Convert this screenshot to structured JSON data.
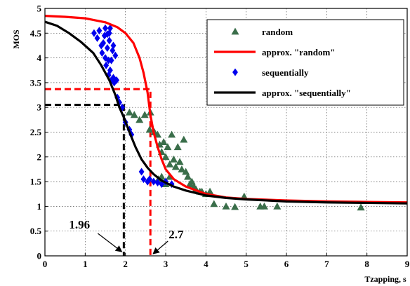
{
  "chart_data": {
    "type": "scatter",
    "title": "",
    "xlabel": "Tzapping, s",
    "ylabel": "MOS",
    "xlim": [
      0,
      9
    ],
    "ylim": [
      0,
      5
    ],
    "x_ticks": [
      0,
      1,
      2,
      3,
      4,
      5,
      6,
      7,
      8,
      9
    ],
    "y_ticks": [
      0,
      0.5,
      1,
      1.5,
      2,
      2.5,
      3,
      3.5,
      4,
      4.5,
      5
    ],
    "x_tick_labels": [
      "0",
      "1",
      "2",
      "3",
      "4",
      "5",
      "6",
      "7",
      "8",
      "9"
    ],
    "y_tick_labels": [
      "0",
      "0.5",
      "1",
      "1.5",
      "2",
      "2.5",
      "3",
      "3.5",
      "4",
      "4.5",
      "5"
    ],
    "grid": true,
    "legend_position": "top-right",
    "series": [
      {
        "name": "random",
        "kind": "scatter",
        "marker": "triangle",
        "color": "#3a6e4a",
        "points": [
          [
            2.1,
            2.9
          ],
          [
            2.22,
            2.85
          ],
          [
            2.35,
            2.75
          ],
          [
            2.48,
            2.85
          ],
          [
            2.6,
            2.55
          ],
          [
            2.72,
            2.5
          ],
          [
            2.62,
            2.9
          ],
          [
            2.8,
            2.45
          ],
          [
            2.85,
            2.25
          ],
          [
            2.9,
            2.1
          ],
          [
            2.95,
            2.3
          ],
          [
            3.0,
            2.0
          ],
          [
            3.05,
            2.2
          ],
          [
            3.1,
            1.85
          ],
          [
            3.15,
            2.45
          ],
          [
            3.2,
            1.95
          ],
          [
            3.25,
            1.8
          ],
          [
            3.3,
            2.2
          ],
          [
            3.35,
            1.9
          ],
          [
            3.4,
            1.75
          ],
          [
            3.45,
            2.35
          ],
          [
            3.5,
            1.7
          ],
          [
            3.55,
            1.6
          ],
          [
            3.6,
            1.45
          ],
          [
            3.65,
            1.5
          ],
          [
            3.7,
            1.4
          ],
          [
            3.75,
            1.35
          ],
          [
            3.85,
            1.3
          ],
          [
            3.9,
            1.3
          ],
          [
            4.0,
            1.25
          ],
          [
            4.1,
            1.3
          ],
          [
            4.2,
            1.05
          ],
          [
            4.5,
            1.0
          ],
          [
            4.72,
            0.99
          ],
          [
            4.95,
            1.2
          ],
          [
            5.35,
            1.0
          ],
          [
            5.45,
            1.0
          ],
          [
            5.77,
            1.0
          ],
          [
            7.85,
            0.98
          ],
          [
            2.82,
            1.55
          ],
          [
            2.9,
            1.6
          ],
          [
            3.0,
            1.45
          ],
          [
            3.1,
            1.6
          ]
        ]
      },
      {
        "name": "approx. \"random\"",
        "kind": "line",
        "color": "#ff0000",
        "points": [
          [
            0,
            4.85
          ],
          [
            0.5,
            4.83
          ],
          [
            1.0,
            4.8
          ],
          [
            1.5,
            4.72
          ],
          [
            1.8,
            4.62
          ],
          [
            2.0,
            4.5
          ],
          [
            2.2,
            4.3
          ],
          [
            2.35,
            4.0
          ],
          [
            2.45,
            3.7
          ],
          [
            2.55,
            3.3
          ],
          [
            2.62,
            2.85
          ],
          [
            2.7,
            2.5
          ],
          [
            2.8,
            2.2
          ],
          [
            2.9,
            1.95
          ],
          [
            3.0,
            1.75
          ],
          [
            3.2,
            1.55
          ],
          [
            3.5,
            1.4
          ],
          [
            4.0,
            1.25
          ],
          [
            4.5,
            1.18
          ],
          [
            5.0,
            1.15
          ],
          [
            6.0,
            1.12
          ],
          [
            7.0,
            1.1
          ],
          [
            8.0,
            1.09
          ],
          [
            9.0,
            1.08
          ]
        ]
      },
      {
        "name": "sequentially",
        "kind": "scatter",
        "marker": "diamond",
        "color": "#0000ee",
        "points": [
          [
            1.22,
            4.5
          ],
          [
            1.3,
            4.4
          ],
          [
            1.35,
            4.55
          ],
          [
            1.4,
            4.25
          ],
          [
            1.42,
            4.1
          ],
          [
            1.45,
            4.3
          ],
          [
            1.48,
            4.45
          ],
          [
            1.5,
            4.0
          ],
          [
            1.52,
            3.85
          ],
          [
            1.55,
            4.2
          ],
          [
            1.58,
            3.95
          ],
          [
            1.6,
            4.35
          ],
          [
            1.62,
            3.75
          ],
          [
            1.65,
            3.55
          ],
          [
            1.68,
            4.15
          ],
          [
            1.7,
            3.6
          ],
          [
            1.72,
            3.5
          ],
          [
            1.75,
            4.05
          ],
          [
            1.5,
            4.6
          ],
          [
            1.55,
            4.48
          ],
          [
            1.6,
            4.5
          ],
          [
            1.62,
            4.6
          ],
          [
            1.58,
            3.65
          ],
          [
            1.65,
            3.95
          ],
          [
            1.7,
            4.25
          ],
          [
            1.78,
            3.55
          ],
          [
            1.8,
            3.2
          ],
          [
            1.85,
            3.1
          ],
          [
            1.92,
            3.0
          ],
          [
            2.0,
            2.7
          ],
          [
            2.1,
            2.55
          ],
          [
            2.15,
            2.45
          ],
          [
            2.4,
            1.7
          ],
          [
            2.45,
            1.55
          ],
          [
            2.55,
            1.5
          ],
          [
            2.6,
            1.55
          ],
          [
            2.7,
            1.5
          ],
          [
            2.8,
            1.48
          ],
          [
            2.9,
            1.45
          ],
          [
            3.0,
            1.5
          ],
          [
            3.15,
            1.45
          ]
        ]
      },
      {
        "name": "approx. \"sequentially\"",
        "kind": "line",
        "color": "#000000",
        "points": [
          [
            0,
            4.73
          ],
          [
            0.3,
            4.65
          ],
          [
            0.6,
            4.5
          ],
          [
            0.9,
            4.32
          ],
          [
            1.2,
            4.1
          ],
          [
            1.4,
            3.85
          ],
          [
            1.6,
            3.55
          ],
          [
            1.75,
            3.25
          ],
          [
            1.85,
            3.0
          ],
          [
            1.96,
            2.8
          ],
          [
            2.1,
            2.5
          ],
          [
            2.25,
            2.2
          ],
          [
            2.4,
            1.95
          ],
          [
            2.55,
            1.78
          ],
          [
            2.7,
            1.65
          ],
          [
            2.9,
            1.52
          ],
          [
            3.2,
            1.4
          ],
          [
            3.5,
            1.32
          ],
          [
            4.0,
            1.22
          ],
          [
            4.5,
            1.17
          ],
          [
            5.0,
            1.14
          ],
          [
            6.0,
            1.1
          ],
          [
            7.0,
            1.08
          ],
          [
            8.0,
            1.07
          ],
          [
            9.0,
            1.06
          ]
        ]
      }
    ],
    "reference_lines": [
      {
        "series": "approx. \"random\"",
        "x": 2.62,
        "y": 3.37,
        "color": "#ff0000",
        "label": "2.7"
      },
      {
        "series": "approx. \"sequentially\"",
        "x": 1.96,
        "y": 3.05,
        "color": "#000000",
        "label": "1.96"
      }
    ]
  }
}
